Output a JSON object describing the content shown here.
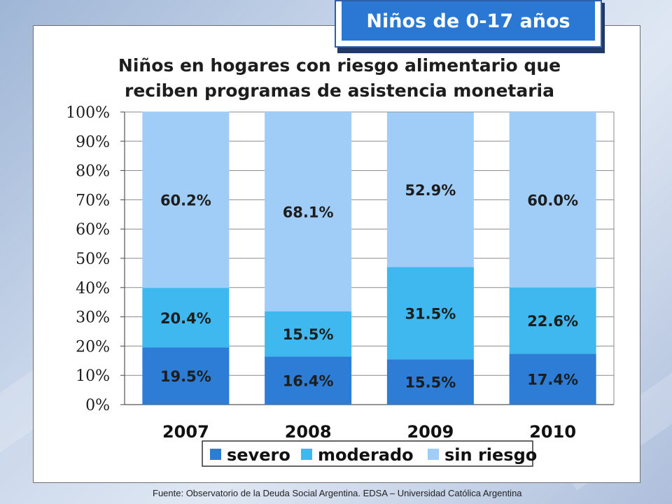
{
  "badge": {
    "label": "Niños de 0-17 años"
  },
  "source_note": "Fuente: Observatorio de la Deuda Social Argentina. EDSA – Universidad Católica Argentina",
  "colors": {
    "severo": "#2d7cd6",
    "moderado": "#3eb8ee",
    "sin_riesgo": "#a0cdf8",
    "badge": "#2a78d3"
  },
  "chart_data": {
    "type": "bar",
    "stacked": true,
    "title": "Niños en hogares con riesgo alimentario que reciben programas de asistencia monetaria",
    "title_lines": [
      "Niños en hogares con riesgo alimentario que",
      "reciben programas de asistencia monetaria"
    ],
    "categories": [
      "2007",
      "2008",
      "2009",
      "2010"
    ],
    "series": [
      {
        "name": "severo",
        "values": [
          19.5,
          16.4,
          15.5,
          17.4
        ],
        "labels": [
          "19.5%",
          "16.4%",
          "15.5%",
          "17.4%"
        ]
      },
      {
        "name": "moderado",
        "values": [
          20.4,
          15.5,
          31.5,
          22.6
        ],
        "labels": [
          "20.4%",
          "15.5%",
          "31.5%",
          "22.6%"
        ]
      },
      {
        "name": "sin riesgo",
        "values": [
          60.2,
          68.1,
          52.9,
          60.0
        ],
        "labels": [
          "60.2%",
          "68.1%",
          "52.9%",
          "60.0%"
        ]
      }
    ],
    "ylim": [
      0,
      100
    ],
    "yticks": [
      "0%",
      "10%",
      "20%",
      "30%",
      "40%",
      "50%",
      "60%",
      "70%",
      "80%",
      "90%",
      "100%"
    ],
    "xlabel": "",
    "ylabel": "",
    "grid": true,
    "legend": "bottom"
  }
}
